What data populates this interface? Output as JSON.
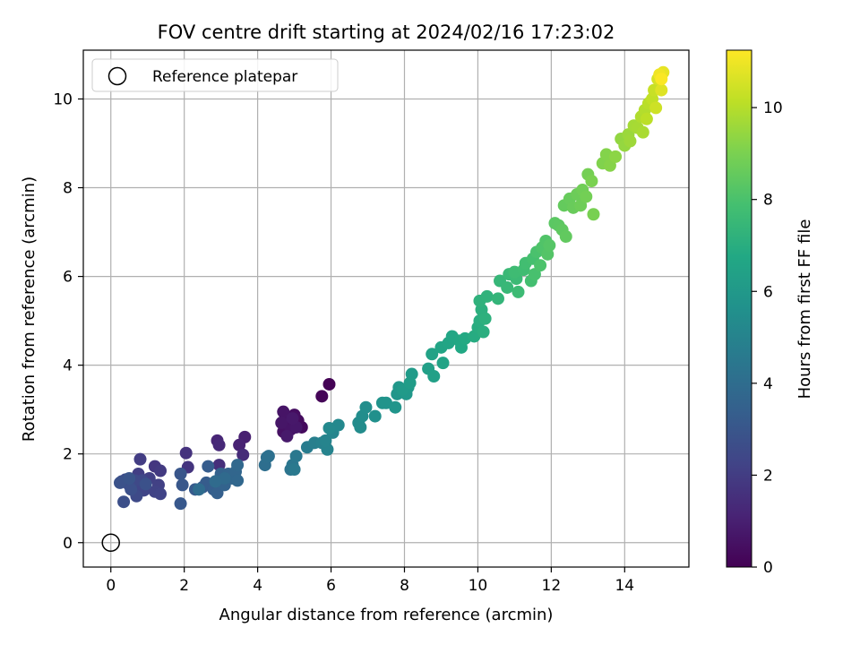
{
  "chart_data": {
    "type": "scatter",
    "title": "FOV centre drift starting at 2024/02/16 17:23:02",
    "xlabel": "Angular distance from reference (arcmin)",
    "ylabel": "Rotation from reference (arcmin)",
    "xlim": [
      -0.75,
      15.75
    ],
    "ylim": [
      -0.55,
      11.1
    ],
    "xticks": [
      "0",
      "2",
      "4",
      "6",
      "8",
      "10",
      "12",
      "14"
    ],
    "yticks": [
      "0",
      "2",
      "4",
      "6",
      "8",
      "10"
    ],
    "grid": true,
    "legend": {
      "placement": "top-left",
      "entries": [
        "Reference platepar"
      ]
    },
    "colorbar": {
      "label": "Hours from first FF file",
      "range": [
        0,
        11.25
      ],
      "ticks": [
        "0",
        "2",
        "4",
        "6",
        "8",
        "10"
      ],
      "colormap": "viridis"
    },
    "reference_point": {
      "x": 0,
      "y": 0
    },
    "points": [
      [
        5.95,
        3.57,
        0.05
      ],
      [
        5.75,
        3.3,
        0.15
      ],
      [
        5.2,
        2.6,
        0.3
      ],
      [
        5.1,
        2.75,
        0.35
      ],
      [
        5.0,
        2.88,
        0.4
      ],
      [
        4.85,
        2.65,
        0.45
      ],
      [
        4.7,
        2.5,
        0.5
      ],
      [
        4.75,
        2.8,
        0.55
      ],
      [
        4.9,
        2.55,
        0.6
      ],
      [
        4.7,
        2.95,
        0.62
      ],
      [
        4.65,
        2.7,
        0.66
      ],
      [
        5.05,
        2.6,
        0.7
      ],
      [
        4.95,
        2.8,
        0.75
      ],
      [
        4.8,
        2.4,
        0.8
      ],
      [
        3.65,
        2.38,
        1.0
      ],
      [
        3.5,
        2.2,
        1.1
      ],
      [
        2.9,
        2.3,
        1.2
      ],
      [
        2.95,
        2.2,
        1.3
      ],
      [
        3.6,
        1.98,
        1.4
      ],
      [
        2.95,
        1.75,
        1.5
      ],
      [
        2.05,
        2.02,
        1.6
      ],
      [
        2.1,
        1.7,
        1.7
      ],
      [
        1.2,
        1.72,
        1.8
      ],
      [
        1.35,
        1.62,
        1.9
      ],
      [
        0.8,
        1.88,
        2.0
      ],
      [
        0.75,
        1.55,
        2.05
      ],
      [
        1.05,
        1.45,
        2.1
      ],
      [
        1.3,
        1.3,
        2.15
      ],
      [
        1.2,
        1.15,
        2.2
      ],
      [
        1.35,
        1.1,
        2.25
      ],
      [
        0.9,
        1.18,
        2.3
      ],
      [
        0.75,
        1.25,
        2.35
      ],
      [
        0.85,
        1.4,
        2.4
      ],
      [
        0.65,
        1.4,
        2.45
      ],
      [
        0.7,
        1.05,
        2.5
      ],
      [
        0.5,
        1.3,
        2.55
      ],
      [
        0.4,
        1.42,
        2.6
      ],
      [
        0.3,
        1.38,
        2.65
      ],
      [
        0.35,
        0.92,
        2.7
      ],
      [
        0.55,
        1.2,
        2.75
      ],
      [
        0.95,
        1.32,
        2.8
      ],
      [
        0.25,
        1.35,
        2.85
      ],
      [
        0.5,
        1.45,
        2.9
      ],
      [
        1.9,
        1.55,
        3.0
      ],
      [
        1.95,
        1.3,
        3.05
      ],
      [
        1.9,
        0.88,
        3.1
      ],
      [
        2.3,
        1.2,
        3.15
      ],
      [
        2.5,
        1.25,
        3.2
      ],
      [
        2.6,
        1.35,
        3.25
      ],
      [
        2.65,
        1.72,
        3.3
      ],
      [
        2.8,
        1.2,
        3.35
      ],
      [
        2.9,
        1.12,
        3.4
      ],
      [
        2.95,
        1.42,
        3.45
      ],
      [
        3.0,
        1.55,
        3.5
      ],
      [
        3.1,
        1.3,
        3.55
      ],
      [
        3.2,
        1.55,
        3.6
      ],
      [
        3.3,
        1.45,
        3.65
      ],
      [
        3.4,
        1.6,
        3.7
      ],
      [
        3.45,
        1.4,
        3.75
      ],
      [
        3.45,
        1.75,
        3.8
      ],
      [
        3.1,
        1.45,
        3.85
      ],
      [
        2.85,
        1.38,
        3.9
      ],
      [
        2.4,
        1.2,
        3.95
      ],
      [
        4.2,
        1.75,
        4.05
      ],
      [
        4.25,
        1.92,
        4.1
      ],
      [
        4.3,
        1.95,
        4.15
      ],
      [
        4.9,
        1.65,
        4.3
      ],
      [
        4.95,
        1.75,
        4.4
      ],
      [
        5.05,
        1.95,
        4.5
      ],
      [
        5.0,
        1.65,
        4.55
      ],
      [
        5.35,
        2.15,
        4.7
      ],
      [
        5.55,
        2.25,
        4.8
      ],
      [
        5.75,
        2.25,
        4.9
      ],
      [
        5.9,
        2.1,
        5.0
      ],
      [
        5.85,
        2.3,
        5.05
      ],
      [
        6.05,
        2.48,
        5.1
      ],
      [
        6.2,
        2.65,
        5.2
      ],
      [
        5.95,
        2.58,
        5.25
      ],
      [
        6.75,
        2.7,
        5.35
      ],
      [
        6.8,
        2.6,
        5.4
      ],
      [
        6.85,
        2.85,
        5.45
      ],
      [
        6.95,
        3.05,
        5.5
      ],
      [
        7.2,
        2.85,
        5.6
      ],
      [
        7.4,
        3.15,
        5.7
      ],
      [
        7.5,
        3.15,
        5.75
      ],
      [
        7.75,
        3.05,
        5.8
      ],
      [
        7.8,
        3.35,
        5.85
      ],
      [
        7.85,
        3.5,
        5.9
      ],
      [
        8.05,
        3.35,
        5.95
      ],
      [
        8.1,
        3.5,
        6.0
      ],
      [
        7.95,
        3.45,
        6.05
      ],
      [
        8.2,
        3.8,
        6.1
      ],
      [
        8.15,
        3.6,
        6.15
      ],
      [
        8.65,
        3.92,
        6.3
      ],
      [
        8.8,
        3.75,
        6.35
      ],
      [
        8.75,
        4.25,
        6.45
      ],
      [
        9.05,
        4.05,
        6.5
      ],
      [
        9.0,
        4.4,
        6.55
      ],
      [
        9.2,
        4.5,
        6.6
      ],
      [
        9.3,
        4.65,
        6.65
      ],
      [
        9.5,
        4.55,
        6.7
      ],
      [
        9.55,
        4.4,
        6.75
      ],
      [
        9.65,
        4.6,
        6.8
      ],
      [
        9.9,
        4.65,
        6.9
      ],
      [
        10.0,
        4.85,
        6.95
      ],
      [
        10.05,
        5.0,
        7.0
      ],
      [
        10.15,
        4.75,
        7.05
      ],
      [
        10.1,
        5.25,
        7.1
      ],
      [
        10.2,
        5.05,
        7.15
      ],
      [
        10.05,
        5.45,
        7.2
      ],
      [
        10.25,
        5.55,
        7.25
      ],
      [
        10.55,
        5.5,
        7.35
      ],
      [
        10.6,
        5.9,
        7.45
      ],
      [
        10.8,
        5.75,
        7.5
      ],
      [
        10.85,
        6.05,
        7.55
      ],
      [
        11.05,
        5.95,
        7.6
      ],
      [
        11.1,
        5.65,
        7.65
      ],
      [
        11.0,
        6.1,
        7.7
      ],
      [
        11.25,
        6.15,
        7.75
      ],
      [
        11.3,
        6.3,
        7.8
      ],
      [
        11.45,
        5.9,
        7.85
      ],
      [
        11.5,
        6.4,
        7.9
      ],
      [
        11.55,
        6.05,
        7.95
      ],
      [
        11.6,
        6.55,
        8.0
      ],
      [
        11.7,
        6.25,
        8.05
      ],
      [
        11.75,
        6.65,
        8.1
      ],
      [
        11.85,
        6.8,
        8.15
      ],
      [
        11.9,
        6.5,
        8.2
      ],
      [
        11.95,
        6.7,
        8.25
      ],
      [
        12.1,
        7.2,
        8.35
      ],
      [
        12.2,
        7.15,
        8.4
      ],
      [
        12.3,
        7.05,
        8.45
      ],
      [
        12.4,
        6.9,
        8.5
      ],
      [
        12.35,
        7.6,
        8.55
      ],
      [
        12.5,
        7.75,
        8.6
      ],
      [
        12.6,
        7.55,
        8.65
      ],
      [
        12.7,
        7.85,
        8.7
      ],
      [
        12.8,
        7.6,
        8.75
      ],
      [
        12.85,
        7.95,
        8.8
      ],
      [
        12.95,
        7.8,
        8.85
      ],
      [
        13.0,
        8.3,
        8.9
      ],
      [
        13.15,
        7.4,
        8.95
      ],
      [
        13.1,
        8.15,
        9.0
      ],
      [
        13.4,
        8.55,
        9.1
      ],
      [
        13.5,
        8.75,
        9.15
      ],
      [
        13.6,
        8.5,
        9.2
      ],
      [
        13.75,
        8.7,
        9.3
      ],
      [
        13.9,
        9.1,
        9.4
      ],
      [
        14.0,
        8.95,
        9.45
      ],
      [
        14.1,
        9.2,
        9.55
      ],
      [
        14.15,
        9.05,
        9.6
      ],
      [
        14.25,
        9.4,
        9.7
      ],
      [
        14.35,
        9.35,
        9.75
      ],
      [
        14.5,
        9.25,
        9.8
      ],
      [
        14.45,
        9.6,
        9.9
      ],
      [
        14.55,
        9.75,
        9.95
      ],
      [
        14.65,
        9.9,
        10.05
      ],
      [
        14.6,
        9.55,
        10.1
      ],
      [
        14.75,
        10.0,
        10.2
      ],
      [
        14.8,
        10.2,
        10.3
      ],
      [
        14.85,
        9.8,
        10.4
      ],
      [
        14.9,
        10.45,
        10.55
      ],
      [
        15.0,
        10.2,
        10.7
      ],
      [
        15.05,
        10.6,
        10.85
      ],
      [
        14.95,
        10.55,
        11.0
      ],
      [
        15.0,
        10.45,
        11.2
      ]
    ]
  }
}
